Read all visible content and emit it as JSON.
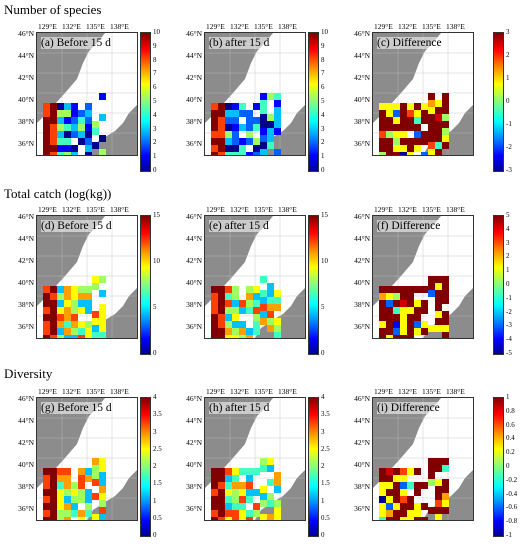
{
  "sections": [
    {
      "title": "Number of species"
    },
    {
      "title": "Total catch (log(kg))"
    },
    {
      "title": "Diversity"
    }
  ],
  "lon_labels": [
    "129°E",
    "132°E",
    "135°E",
    "138°E"
  ],
  "lat_labels": [
    "46°N",
    "44°N",
    "42°N",
    "40°N",
    "38°N",
    "36°N"
  ],
  "colormap": "jet",
  "panels": [
    {
      "label": "(a) Before 15 d",
      "ticks": [
        "10",
        "9",
        "8",
        "7",
        "6",
        "5",
        "4",
        "3",
        "2",
        "1",
        "0"
      ],
      "cells": "a"
    },
    {
      "label": "(b) after 15 d",
      "ticks": [
        "10",
        "9",
        "8",
        "7",
        "6",
        "5",
        "4",
        "3",
        "2",
        "1",
        "0"
      ],
      "cells": "b",
      "line": true
    },
    {
      "label": "(c) Difference",
      "ticks": [
        "3",
        "2",
        "1",
        "0",
        "-1",
        "-2",
        "-3"
      ],
      "cells": "c",
      "line": true
    },
    {
      "label": "(d) Before 15 d",
      "ticks": [
        "15",
        "10",
        "5",
        "0"
      ],
      "cells": "d"
    },
    {
      "label": "(e) after 15 d",
      "ticks": [
        "15",
        "10",
        "5",
        "0"
      ],
      "cells": "e",
      "line": true
    },
    {
      "label": "(f) Difference",
      "ticks": [
        "5",
        "4",
        "3",
        "2",
        "1",
        "0",
        "-1",
        "-2",
        "-3",
        "-4",
        "-5"
      ],
      "cells": "f",
      "line": true
    },
    {
      "label": "(g) Before 15 d",
      "ticks": [
        "4",
        "3.5",
        "3",
        "2.5",
        "2",
        "1.5",
        "1",
        "0.5",
        "0"
      ],
      "cells": "g"
    },
    {
      "label": "(h) after 15 d",
      "ticks": [
        "4",
        "3.5",
        "3",
        "2.5",
        "2",
        "1.5",
        "1",
        "0.5",
        "0"
      ],
      "cells": "h",
      "line": true
    },
    {
      "label": "(i) Difference",
      "ticks": [
        "1",
        "0.8",
        "0.6",
        "0.4",
        "0.2",
        "0",
        "-0.2",
        "-0.4",
        "-0.6",
        "-0.8",
        "-1"
      ],
      "cells": "i",
      "line": true
    }
  ]
}
